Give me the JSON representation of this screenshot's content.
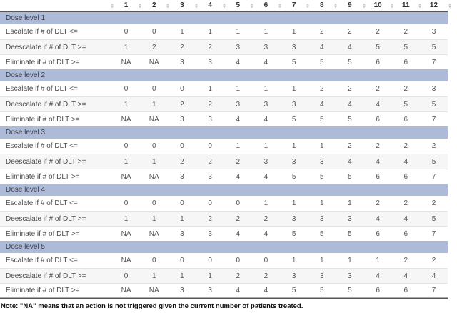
{
  "colors": {
    "band": "#adbbd8",
    "table_border": "#565659",
    "stripe": "#f6f6f6",
    "row_line": "#e3e3e3",
    "sort_icon": "#c9c9c9",
    "header_text": "#333333",
    "label_text": "#4a4a4a",
    "cell_text": "#545454",
    "note_text": "#111111"
  },
  "table": {
    "sort_icon": "sort-up-down-icon",
    "column_headers": [
      "1",
      "2",
      "3",
      "4",
      "5",
      "6",
      "7",
      "8",
      "9",
      "10",
      "11",
      "12"
    ],
    "groups": [
      {
        "label": "Dose level 1",
        "rows": [
          {
            "label": "Escalate if # of DLT <=",
            "values": [
              "0",
              "0",
              "1",
              "1",
              "1",
              "1",
              "1",
              "2",
              "2",
              "2",
              "2",
              "3"
            ]
          },
          {
            "label": "Deescalate if # of DLT >=",
            "values": [
              "1",
              "2",
              "2",
              "2",
              "3",
              "3",
              "3",
              "4",
              "4",
              "5",
              "5",
              "5"
            ]
          },
          {
            "label": "Eliminate if # of DLT >=",
            "values": [
              "NA",
              "NA",
              "3",
              "3",
              "4",
              "4",
              "5",
              "5",
              "5",
              "6",
              "6",
              "7"
            ]
          }
        ]
      },
      {
        "label": "Dose level 2",
        "rows": [
          {
            "label": "Escalate if # of DLT <=",
            "values": [
              "0",
              "0",
              "0",
              "1",
              "1",
              "1",
              "1",
              "2",
              "2",
              "2",
              "2",
              "3"
            ]
          },
          {
            "label": "Deescalate if # of DLT >=",
            "values": [
              "1",
              "1",
              "2",
              "2",
              "3",
              "3",
              "3",
              "4",
              "4",
              "4",
              "5",
              "5"
            ]
          },
          {
            "label": "Eliminate if # of DLT >=",
            "values": [
              "NA",
              "NA",
              "3",
              "3",
              "4",
              "4",
              "5",
              "5",
              "5",
              "6",
              "6",
              "7"
            ]
          }
        ]
      },
      {
        "label": "Dose level 3",
        "rows": [
          {
            "label": "Escalate if # of DLT <=",
            "values": [
              "0",
              "0",
              "0",
              "0",
              "1",
              "1",
              "1",
              "1",
              "2",
              "2",
              "2",
              "2"
            ]
          },
          {
            "label": "Deescalate if # of DLT >=",
            "values": [
              "1",
              "1",
              "2",
              "2",
              "2",
              "3",
              "3",
              "3",
              "4",
              "4",
              "4",
              "5"
            ]
          },
          {
            "label": "Eliminate if # of DLT >=",
            "values": [
              "NA",
              "NA",
              "3",
              "3",
              "4",
              "4",
              "5",
              "5",
              "5",
              "6",
              "6",
              "7"
            ]
          }
        ]
      },
      {
        "label": "Dose level 4",
        "rows": [
          {
            "label": "Escalate if # of DLT <=",
            "values": [
              "0",
              "0",
              "0",
              "0",
              "0",
              "1",
              "1",
              "1",
              "1",
              "2",
              "2",
              "2"
            ]
          },
          {
            "label": "Deescalate if # of DLT >=",
            "values": [
              "1",
              "1",
              "1",
              "2",
              "2",
              "2",
              "3",
              "3",
              "3",
              "4",
              "4",
              "5"
            ]
          },
          {
            "label": "Eliminate if # of DLT >=",
            "values": [
              "NA",
              "NA",
              "3",
              "3",
              "4",
              "4",
              "5",
              "5",
              "5",
              "6",
              "6",
              "7"
            ]
          }
        ]
      },
      {
        "label": "Dose level 5",
        "rows": [
          {
            "label": "Escalate if # of DLT <=",
            "values": [
              "NA",
              "0",
              "0",
              "0",
              "0",
              "0",
              "1",
              "1",
              "1",
              "1",
              "2",
              "2"
            ]
          },
          {
            "label": "Deescalate if # of DLT >=",
            "values": [
              "0",
              "1",
              "1",
              "1",
              "2",
              "2",
              "3",
              "3",
              "3",
              "4",
              "4",
              "4"
            ]
          },
          {
            "label": "Eliminate if # of DLT >=",
            "values": [
              "NA",
              "NA",
              "3",
              "3",
              "4",
              "4",
              "5",
              "5",
              "5",
              "6",
              "6",
              "7"
            ]
          }
        ]
      }
    ]
  },
  "note": "Note: \"NA\" means that an action is not triggered given the current number of patients treated."
}
